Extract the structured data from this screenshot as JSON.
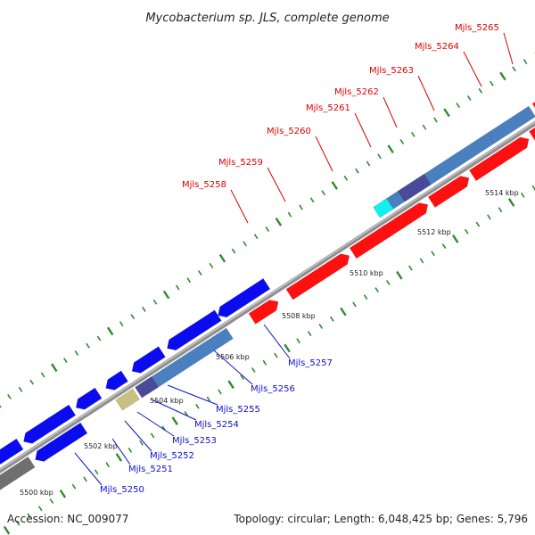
{
  "title": "Mycobacterium sp. JLS, complete genome",
  "footer": {
    "accession": "Accession: NC_009077",
    "summary": "Topology: circular; Length: 6,048,425 bp; Genes: 5,796"
  },
  "colors": {
    "backbone": "#8f8f8f",
    "tick": "#2e8b2e",
    "forward_label": "#dd0000",
    "reverse_label": "#1010c8",
    "red_gene": "#ff1010",
    "blue_gene": "#0b0bf0",
    "steel_gene": "#4a80c0",
    "slate_gene": "#4a4a9a",
    "cyan_gene": "#10f0f0",
    "khaki_gene": "#c8c080",
    "gray_gene": "#6f6f6f"
  },
  "coordinate_labels": [
    "5500 kbp",
    "5502 kbp",
    "5504 kbp",
    "5506 kbp",
    "5508 kbp",
    "5510 kbp",
    "5512 kbp",
    "5514 kbp"
  ],
  "forward_genes": [
    "Mjls_5258",
    "Mjls_5259",
    "Mjls_5260",
    "Mjls_5261",
    "Mjls_5262",
    "Mjls_5263",
    "Mjls_5264",
    "Mjls_5265"
  ],
  "reverse_genes": [
    "Mjls_5250",
    "Mjls_5251",
    "Mjls_5252",
    "Mjls_5253",
    "Mjls_5254",
    "Mjls_5255",
    "Mjls_5256",
    "Mjls_5257"
  ]
}
